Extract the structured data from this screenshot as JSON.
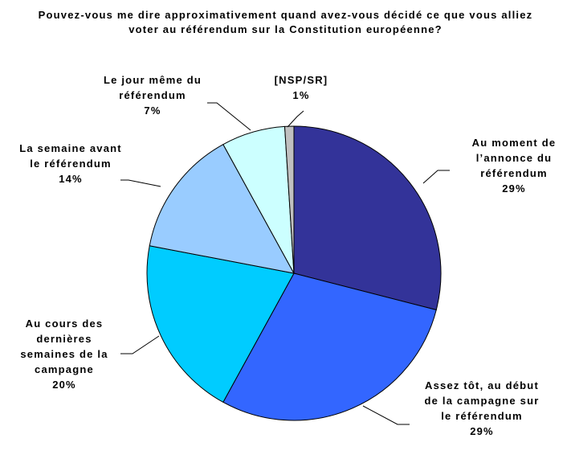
{
  "chart_data": {
    "type": "pie",
    "title": "Pouvez-vous me dire approximativement quand avez-vous décidé ce que vous alliez voter au référendum sur la Constitution européenne?",
    "categories": [
      "Au moment de l’annonce du référendum",
      "Assez tôt, au début de la campagne sur le référendum",
      "Au cours des dernières semaines de la campagne",
      "La semaine avant le référendum",
      "Le jour même du référendum",
      "[NSP/SR]"
    ],
    "values": [
      29,
      29,
      20,
      14,
      7,
      1
    ],
    "value_labels": [
      "29%",
      "29%",
      "20%",
      "14%",
      "7%",
      "1%"
    ],
    "colors": [
      "#333399",
      "#3366ff",
      "#00ccff",
      "#99ccff",
      "#ccffff",
      "#c0c0c0"
    ]
  }
}
